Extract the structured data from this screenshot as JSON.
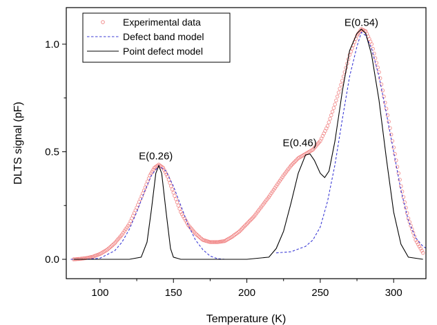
{
  "chart_data": {
    "type": "line",
    "xlabel": "Temperature (K)",
    "ylabel": "DLTS signal (pF)",
    "xlim": [
      77,
      322
    ],
    "ylim": [
      -0.09,
      1.17
    ],
    "x_ticks": [
      100,
      150,
      200,
      250,
      300
    ],
    "y_ticks": [
      0.0,
      0.5,
      1.0
    ],
    "y_tick_labels": [
      "0.0",
      "0.5",
      "1.0"
    ],
    "grid": false,
    "legend_position": "top-left",
    "series": [
      {
        "name": "Experimental data",
        "style": "open-circles",
        "color": "#f08080",
        "points": [
          [
            82,
            0.0
          ],
          [
            86,
            0.002
          ],
          [
            90,
            0.005
          ],
          [
            95,
            0.012
          ],
          [
            100,
            0.025
          ],
          [
            105,
            0.045
          ],
          [
            110,
            0.075
          ],
          [
            115,
            0.115
          ],
          [
            120,
            0.165
          ],
          [
            125,
            0.24
          ],
          [
            130,
            0.32
          ],
          [
            134,
            0.39
          ],
          [
            137,
            0.425
          ],
          [
            140,
            0.44
          ],
          [
            143,
            0.425
          ],
          [
            146,
            0.385
          ],
          [
            150,
            0.31
          ],
          [
            155,
            0.22
          ],
          [
            160,
            0.16
          ],
          [
            165,
            0.12
          ],
          [
            170,
            0.09
          ],
          [
            175,
            0.08
          ],
          [
            180,
            0.08
          ],
          [
            185,
            0.085
          ],
          [
            190,
            0.105
          ],
          [
            195,
            0.13
          ],
          [
            200,
            0.165
          ],
          [
            205,
            0.2
          ],
          [
            210,
            0.245
          ],
          [
            215,
            0.29
          ],
          [
            220,
            0.34
          ],
          [
            225,
            0.39
          ],
          [
            230,
            0.435
          ],
          [
            235,
            0.47
          ],
          [
            240,
            0.49
          ],
          [
            245,
            0.51
          ],
          [
            250,
            0.55
          ],
          [
            255,
            0.62
          ],
          [
            260,
            0.72
          ],
          [
            265,
            0.83
          ],
          [
            270,
            0.95
          ],
          [
            275,
            1.04
          ],
          [
            278,
            1.07
          ],
          [
            281,
            1.06
          ],
          [
            285,
            1.0
          ],
          [
            290,
            0.87
          ],
          [
            295,
            0.7
          ],
          [
            300,
            0.52
          ],
          [
            305,
            0.34
          ],
          [
            310,
            0.19
          ],
          [
            315,
            0.09
          ],
          [
            320,
            0.03
          ]
        ]
      },
      {
        "name": "Defect band model",
        "style": "dashed",
        "color": "#3b3bd6",
        "segments": [
          [
            [
              80,
              0.0
            ],
            [
              90,
              0.0
            ],
            [
              100,
              0.005
            ],
            [
              110,
              0.04
            ],
            [
              115,
              0.08
            ],
            [
              120,
              0.14
            ],
            [
              125,
              0.22
            ],
            [
              130,
              0.31
            ],
            [
              135,
              0.39
            ],
            [
              140,
              0.435
            ],
            [
              145,
              0.41
            ],
            [
              150,
              0.34
            ],
            [
              155,
              0.25
            ],
            [
              160,
              0.16
            ],
            [
              165,
              0.09
            ],
            [
              170,
              0.045
            ],
            [
              175,
              0.015
            ],
            [
              180,
              0.003
            ],
            [
              185,
              0.0
            ]
          ],
          [
            [
              220,
              0.03
            ],
            [
              230,
              0.035
            ],
            [
              240,
              0.06
            ],
            [
              245,
              0.09
            ],
            [
              250,
              0.15
            ],
            [
              255,
              0.27
            ],
            [
              260,
              0.44
            ],
            [
              265,
              0.65
            ],
            [
              270,
              0.85
            ],
            [
              275,
              0.99
            ],
            [
              278,
              1.055
            ],
            [
              281,
              1.04
            ],
            [
              285,
              0.98
            ],
            [
              290,
              0.85
            ],
            [
              295,
              0.68
            ],
            [
              300,
              0.5
            ],
            [
              305,
              0.32
            ],
            [
              310,
              0.18
            ],
            [
              315,
              0.1
            ],
            [
              320,
              0.06
            ],
            [
              325,
              0.04
            ],
            [
              330,
              0.03
            ]
          ]
        ]
      },
      {
        "name": "Point defect model",
        "style": "solid",
        "color": "#000000",
        "points": [
          [
            82,
            0.0
          ],
          [
            120,
            0.0
          ],
          [
            128,
            0.01
          ],
          [
            132,
            0.08
          ],
          [
            135,
            0.23
          ],
          [
            138,
            0.4
          ],
          [
            140,
            0.435
          ],
          [
            142,
            0.4
          ],
          [
            145,
            0.22
          ],
          [
            148,
            0.05
          ],
          [
            150,
            0.01
          ],
          [
            155,
            0.0
          ],
          [
            200,
            0.0
          ],
          [
            215,
            0.01
          ],
          [
            220,
            0.05
          ],
          [
            225,
            0.13
          ],
          [
            230,
            0.26
          ],
          [
            235,
            0.4
          ],
          [
            240,
            0.485
          ],
          [
            243,
            0.49
          ],
          [
            246,
            0.46
          ],
          [
            250,
            0.4
          ],
          [
            253,
            0.38
          ],
          [
            256,
            0.41
          ],
          [
            260,
            0.55
          ],
          [
            265,
            0.78
          ],
          [
            270,
            0.97
          ],
          [
            275,
            1.05
          ],
          [
            278,
            1.07
          ],
          [
            281,
            1.05
          ],
          [
            285,
            0.95
          ],
          [
            290,
            0.74
          ],
          [
            295,
            0.47
          ],
          [
            300,
            0.22
          ],
          [
            305,
            0.07
          ],
          [
            310,
            0.01
          ],
          [
            320,
            0.0
          ]
        ]
      }
    ],
    "annotations": [
      {
        "text": "E(0.26)",
        "x": 138,
        "y": 0.465
      },
      {
        "text": "E(0.46)",
        "x": 236,
        "y": 0.525
      },
      {
        "text": "E(0.54)",
        "x": 278,
        "y": 1.085
      }
    ]
  }
}
